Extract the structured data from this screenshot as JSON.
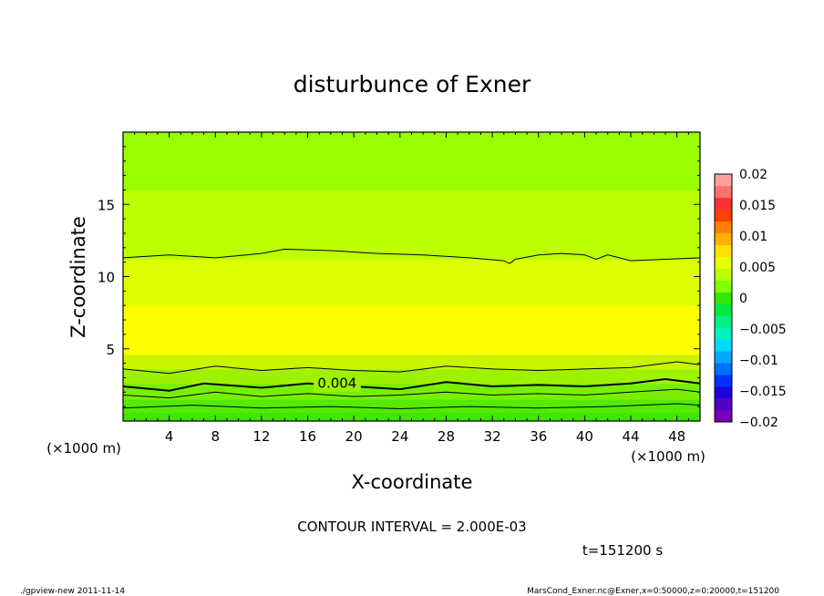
{
  "chart_data": {
    "type": "heatmap",
    "title": "disturbunce of Exner",
    "xlabel": "X-coordinate",
    "ylabel": "Z-coordinate",
    "x_unit_left": "(×1000 m)",
    "x_unit_right": "(×1000 m)",
    "xlim": [
      0,
      50
    ],
    "ylim": [
      0,
      20
    ],
    "x_ticks": [
      4,
      8,
      12,
      16,
      20,
      24,
      28,
      32,
      36,
      40,
      44,
      48
    ],
    "y_ticks": [
      5,
      10,
      15
    ],
    "colorbar": {
      "min": -0.02,
      "max": 0.02,
      "tick_values": [
        0.02,
        0.015,
        0.01,
        0.005,
        0,
        -0.005,
        -0.01,
        -0.015,
        -0.02
      ],
      "tick_labels": [
        "0.02",
        "0.015",
        "0.01",
        "0.005",
        "0",
        "−0.005",
        "−0.01",
        "−0.015",
        "−0.02"
      ]
    },
    "field_bands": [
      {
        "z0": 0,
        "z1": 0.6,
        "value": 0.001,
        "color": "#3ee600"
      },
      {
        "z0": 0.6,
        "z1": 1.5,
        "value": 0.002,
        "color": "#55ea00"
      },
      {
        "z0": 1.5,
        "z1": 2.6,
        "value": 0.003,
        "color": "#77f000"
      },
      {
        "z0": 2.6,
        "z1": 3.6,
        "value": 0.0035,
        "color": "#9ef200"
      },
      {
        "z0": 3.6,
        "z1": 4.6,
        "value": 0.0045,
        "color": "#c8f500"
      },
      {
        "z0": 4.6,
        "z1": 8.0,
        "value": 0.006,
        "color": "#ffff00"
      },
      {
        "z0": 8.0,
        "z1": 11.2,
        "value": 0.005,
        "color": "#ddff00"
      },
      {
        "z0": 11.2,
        "z1": 16.0,
        "value": 0.004,
        "color": "#bbff00"
      },
      {
        "z0": 16.0,
        "z1": 20,
        "value": 0.003,
        "color": "#99ff00"
      }
    ],
    "contours": [
      {
        "value": 0.002,
        "label": "",
        "points": [
          [
            0,
            0.9
          ],
          [
            6,
            1.1
          ],
          [
            12,
            0.9
          ],
          [
            18,
            1.0
          ],
          [
            24,
            0.85
          ],
          [
            30,
            1.0
          ],
          [
            36,
            0.9
          ],
          [
            42,
            1.0
          ],
          [
            48,
            1.2
          ],
          [
            50,
            1.1
          ]
        ]
      },
      {
        "value": 0.003,
        "label": "",
        "points": [
          [
            0,
            1.8
          ],
          [
            4,
            1.6
          ],
          [
            8,
            2.0
          ],
          [
            12,
            1.7
          ],
          [
            16,
            1.9
          ],
          [
            20,
            1.7
          ],
          [
            24,
            1.8
          ],
          [
            28,
            2.0
          ],
          [
            32,
            1.8
          ],
          [
            36,
            1.9
          ],
          [
            40,
            1.8
          ],
          [
            44,
            2.0
          ],
          [
            48,
            2.2
          ],
          [
            50,
            2.0
          ]
        ]
      },
      {
        "value": 0.004,
        "label": "0.004",
        "points": [
          [
            0,
            2.4
          ],
          [
            4,
            2.1
          ],
          [
            7,
            2.6
          ],
          [
            12,
            2.3
          ],
          [
            16,
            2.6
          ],
          [
            20,
            2.4
          ],
          [
            24,
            2.2
          ],
          [
            28,
            2.7
          ],
          [
            32,
            2.4
          ],
          [
            36,
            2.5
          ],
          [
            40,
            2.4
          ],
          [
            44,
            2.6
          ],
          [
            47,
            2.9
          ],
          [
            50,
            2.6
          ]
        ]
      },
      {
        "value": 0.0035,
        "label": "",
        "points": [
          [
            0,
            3.6
          ],
          [
            4,
            3.3
          ],
          [
            8,
            3.8
          ],
          [
            12,
            3.5
          ],
          [
            16,
            3.7
          ],
          [
            20,
            3.5
          ],
          [
            24,
            3.4
          ],
          [
            28,
            3.8
          ],
          [
            32,
            3.6
          ],
          [
            36,
            3.5
          ],
          [
            40,
            3.6
          ],
          [
            44,
            3.7
          ],
          [
            48,
            4.1
          ],
          [
            50,
            3.9
          ]
        ]
      },
      {
        "value": 0.005,
        "label": "",
        "points": [
          [
            0,
            11.3
          ],
          [
            4,
            11.5
          ],
          [
            8,
            11.3
          ],
          [
            12,
            11.6
          ],
          [
            14,
            11.9
          ],
          [
            18,
            11.8
          ],
          [
            22,
            11.6
          ],
          [
            26,
            11.5
          ],
          [
            30,
            11.3
          ],
          [
            33,
            11.1
          ],
          [
            33.5,
            10.9
          ],
          [
            34,
            11.2
          ],
          [
            36,
            11.5
          ],
          [
            38,
            11.6
          ],
          [
            40,
            11.5
          ],
          [
            41,
            11.2
          ],
          [
            42,
            11.5
          ],
          [
            44,
            11.1
          ],
          [
            47,
            11.2
          ],
          [
            50,
            11.3
          ]
        ]
      }
    ],
    "contour_interval_text": "CONTOUR INTERVAL = 2.000E-03",
    "time_text": "t=151200 s"
  },
  "footer": {
    "left": "./gpview-new   2011-11-14",
    "right": "MarsCond_Exner.nc@Exner,x=0:50000,z=0:20000,t=151200"
  }
}
